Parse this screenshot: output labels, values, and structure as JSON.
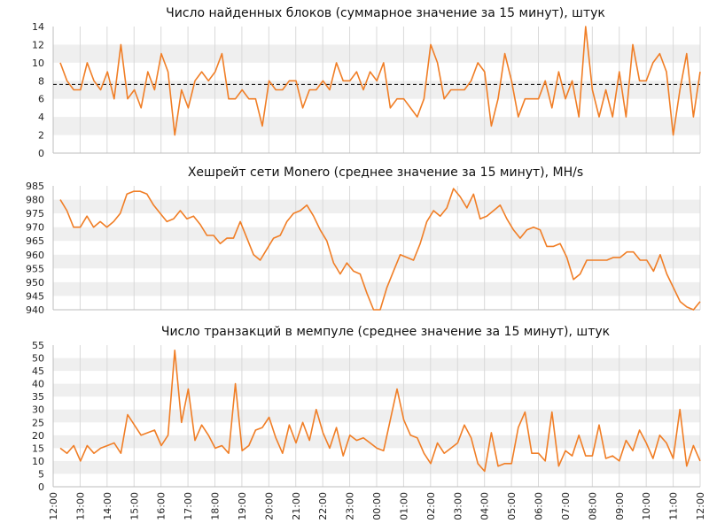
{
  "chart_data": [
    {
      "type": "line",
      "title": "Число найденных блоков (суммарное значение за 15 минут), штук",
      "ylim": [
        0,
        14
      ],
      "yticks": [
        0,
        2,
        4,
        6,
        8,
        10,
        12,
        14
      ],
      "reference_line": 7.6,
      "grid": true,
      "color": "#f07e26",
      "values": [
        10,
        8,
        7,
        7,
        10,
        8,
        7,
        9,
        6,
        12,
        6,
        7,
        5,
        9,
        7,
        11,
        9,
        2,
        7,
        5,
        8,
        9,
        8,
        9,
        11,
        6,
        6,
        7,
        6,
        6,
        3,
        8,
        7,
        7,
        8,
        8,
        5,
        7,
        7,
        8,
        7,
        10,
        8,
        8,
        9,
        7,
        9,
        8,
        10,
        5,
        6,
        6,
        5,
        4,
        6,
        12,
        10,
        6,
        7,
        7,
        7,
        8,
        10,
        9,
        3,
        6,
        11,
        8,
        4,
        6,
        6,
        6,
        8,
        5,
        9,
        6,
        8,
        4,
        14,
        7,
        4,
        7,
        4,
        9,
        4,
        12,
        8,
        8,
        10,
        11,
        9,
        2,
        7,
        11,
        4,
        9
      ]
    },
    {
      "type": "line",
      "title": "Хешрейт сети Monero (среднее значение за 15 минут), MH/s",
      "ylim": [
        940,
        985
      ],
      "yticks": [
        940,
        945,
        950,
        955,
        960,
        965,
        970,
        975,
        980,
        985
      ],
      "grid": true,
      "color": "#f07e26",
      "values": [
        980,
        976,
        970,
        970,
        974,
        970,
        972,
        970,
        972,
        975,
        982,
        983,
        983,
        982,
        978,
        975,
        972,
        973,
        976,
        973,
        974,
        971,
        967,
        967,
        964,
        966,
        966,
        972,
        966,
        960,
        958,
        962,
        966,
        967,
        972,
        975,
        976,
        978,
        974,
        969,
        965,
        957,
        953,
        957,
        954,
        953,
        946,
        940,
        940,
        948,
        954,
        960,
        959,
        958,
        964,
        972,
        976,
        974,
        977,
        984,
        981,
        977,
        982,
        973,
        974,
        976,
        978,
        973,
        969,
        966,
        969,
        970,
        969,
        963,
        963,
        964,
        959,
        951,
        953,
        958,
        958,
        958,
        958,
        959,
        959,
        961,
        961,
        958,
        958,
        954,
        960,
        953,
        948,
        943,
        941,
        940,
        943
      ]
    },
    {
      "type": "line",
      "title": "Число транзакций в мемпуле (среднее значение за 15 минут), штук",
      "ylim": [
        0,
        55
      ],
      "yticks": [
        0,
        5,
        10,
        15,
        20,
        25,
        30,
        35,
        40,
        45,
        50,
        55
      ],
      "grid": true,
      "color": "#f07e26",
      "values": [
        15,
        13,
        16,
        10,
        16,
        13,
        15,
        16,
        17,
        13,
        28,
        24,
        20,
        21,
        22,
        16,
        20,
        53,
        25,
        38,
        18,
        24,
        20,
        15,
        16,
        13,
        40,
        14,
        16,
        22,
        23,
        27,
        19,
        13,
        24,
        17,
        25,
        18,
        30,
        21,
        15,
        23,
        12,
        20,
        18,
        19,
        17,
        15,
        14,
        26,
        38,
        26,
        20,
        19,
        13,
        9,
        17,
        13,
        15,
        17,
        24,
        19,
        9,
        6,
        21,
        8,
        9,
        9,
        23,
        29,
        13,
        13,
        10,
        29,
        8,
        14,
        12,
        20,
        12,
        12,
        24,
        11,
        12,
        10,
        18,
        14,
        22,
        17,
        11,
        20,
        17,
        11,
        30,
        8,
        16,
        10
      ]
    }
  ],
  "x_axis": {
    "tick_labels": [
      "12:00",
      "13:00",
      "14:00",
      "15:00",
      "16:00",
      "17:00",
      "18:00",
      "19:00",
      "20:00",
      "21:00",
      "22:00",
      "23:00",
      "00:00",
      "01:00",
      "02:00",
      "03:00",
      "04:00",
      "05:00",
      "06:00",
      "07:00",
      "08:00",
      "09:00",
      "10:00",
      "11:00",
      "12:00"
    ]
  }
}
